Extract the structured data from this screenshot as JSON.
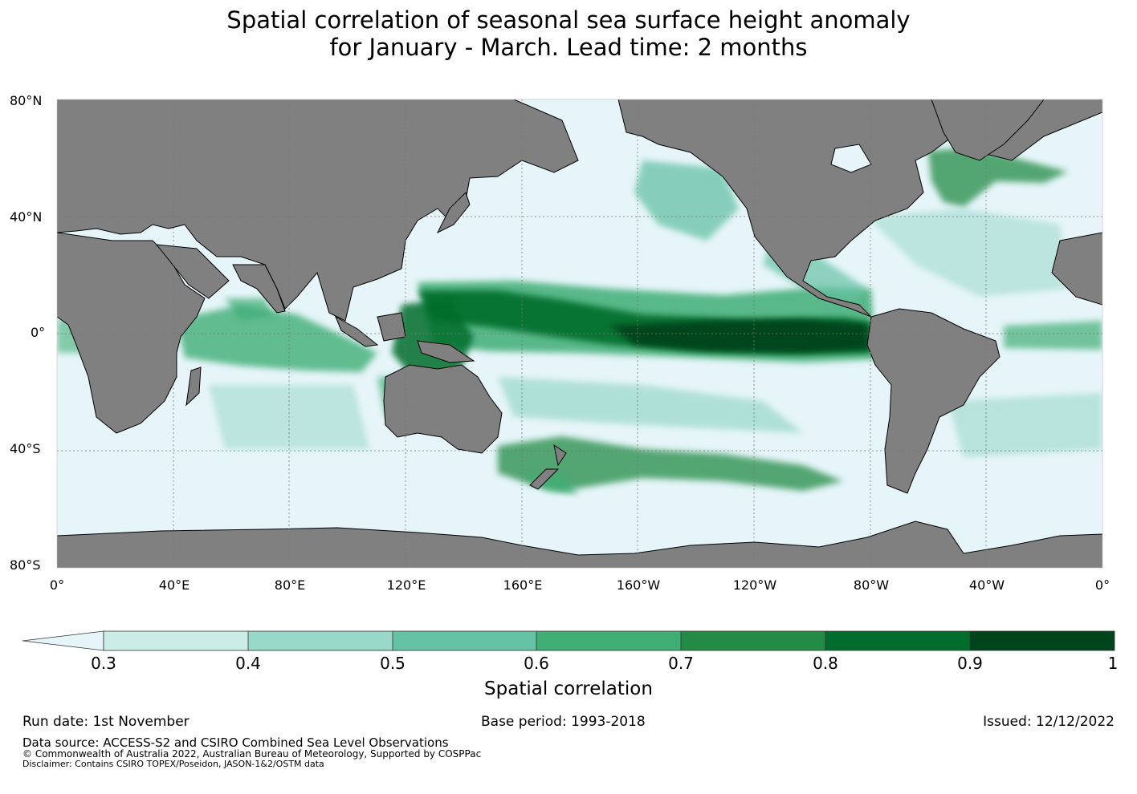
{
  "title_line1": "Spatial correlation of seasonal sea surface height anomaly",
  "title_line2": "for January - March. Lead time: 2 months",
  "map": {
    "lat_labels": [
      "80°N",
      "40°N",
      "0°",
      "40°S",
      "80°S"
    ],
    "lon_labels": [
      "0°",
      "40°E",
      "80°E",
      "120°E",
      "160°E",
      "160°W",
      "120°W",
      "80°W",
      "40°W",
      "0°"
    ],
    "colors": {
      "ocean": "#e6f5f9",
      "land": "#808080",
      "coast": "#000000",
      "grid": "#777777"
    }
  },
  "colorbar": {
    "ticks": [
      "0.3",
      "0.4",
      "0.5",
      "0.6",
      "0.7",
      "0.8",
      "0.9",
      "1"
    ],
    "colors": [
      "#ccece6",
      "#99d8c9",
      "#66c2a4",
      "#41ae76",
      "#238b45",
      "#006d2c",
      "#00441b"
    ],
    "under_color": "#e5f5f9",
    "label": "Spatial correlation"
  },
  "footer": {
    "run_date": "Run date: 1st November",
    "base_period": "Base period: 1993-2018",
    "issued": "Issued: 12/12/2022",
    "data_source": "Data source: ACCESS-S2 and CSIRO Combined Sea Level Observations",
    "copyright": "© Commonwealth of Australia 2022, Australian Bureau of Meteorology, Supported by COSPPac",
    "disclaimer": "Disclaimer: Contains CSIRO TOPEX/Poseidon, JASON-1&2/OSTM data"
  }
}
